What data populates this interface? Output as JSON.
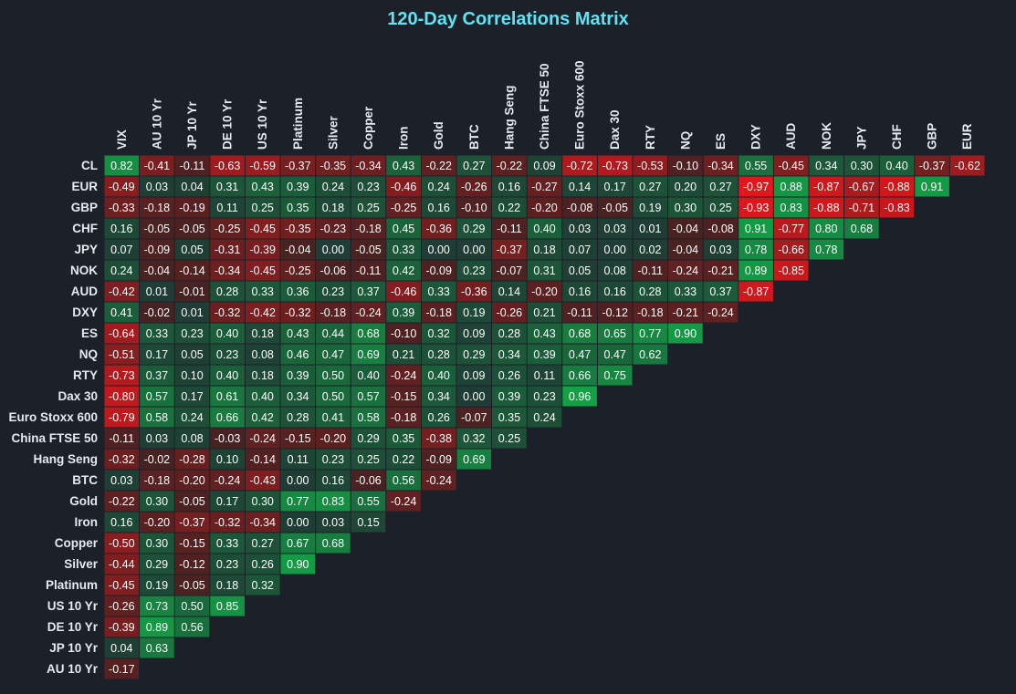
{
  "chart_data": {
    "type": "heatmap",
    "title": "120-Day Correlations Matrix",
    "columns": [
      "VIX",
      "AU 10 Yr",
      "JP 10 Yr",
      "DE 10 Yr",
      "US 10 Yr",
      "Platinum",
      "Silver",
      "Copper",
      "Iron",
      "Gold",
      "BTC",
      "Hang Seng",
      "China FTSE 50",
      "Euro Stoxx 600",
      "Dax 30",
      "RTY",
      "NQ",
      "ES",
      "DXY",
      "AUD",
      "NOK",
      "JPY",
      "CHF",
      "GBP",
      "EUR"
    ],
    "rows": [
      "CL",
      "EUR",
      "GBP",
      "CHF",
      "JPY",
      "NOK",
      "AUD",
      "DXY",
      "ES",
      "NQ",
      "RTY",
      "Dax 30",
      "Euro Stoxx 600",
      "China FTSE 50",
      "Hang Seng",
      "BTC",
      "Gold",
      "Iron",
      "Copper",
      "Silver",
      "Platinum",
      "US 10 Yr",
      "DE 10 Yr",
      "JP 10 Yr",
      "AU 10 Yr"
    ],
    "values": [
      [
        "0.82",
        "-0.41",
        "-0.11",
        "-0.63",
        "-0.59",
        "-0.37",
        "-0.35",
        "-0.34",
        "0.43",
        "-0.22",
        "0.27",
        "-0.22",
        "0.09",
        "-0.72",
        "-0.73",
        "-0.53",
        "-0.10",
        "-0.34",
        "0.55",
        "-0.45",
        "0.34",
        "0.30",
        "0.40",
        "-0.37",
        "-0.62"
      ],
      [
        "-0.49",
        "0.03",
        "0.04",
        "0.31",
        "0.43",
        "0.39",
        "0.24",
        "0.23",
        "-0.46",
        "0.24",
        "-0.26",
        "0.16",
        "-0.27",
        "0.14",
        "0.17",
        "0.27",
        "0.20",
        "0.27",
        "-0.97",
        "0.88",
        "-0.87",
        "-0.67",
        "-0.88",
        "0.91"
      ],
      [
        "-0.33",
        "-0.18",
        "-0.19",
        "0.11",
        "0.25",
        "0.35",
        "0.18",
        "0.25",
        "-0.25",
        "0.16",
        "-0.10",
        "0.22",
        "-0.20",
        "-0.08",
        "-0.05",
        "0.19",
        "0.30",
        "0.25",
        "-0.93",
        "0.83",
        "-0.88",
        "-0.71",
        "-0.83"
      ],
      [
        "0.16",
        "-0.05",
        "-0.05",
        "-0.25",
        "-0.45",
        "-0.35",
        "-0.23",
        "-0.18",
        "0.45",
        "-0.36",
        "0.29",
        "-0.11",
        "0.40",
        "0.03",
        "0.03",
        "0.01",
        "-0.04",
        "-0.08",
        "0.91",
        "-0.77",
        "0.80",
        "0.68"
      ],
      [
        "0.07",
        "-0.09",
        "0.05",
        "-0.31",
        "-0.39",
        "-0.04",
        "0.00",
        "-0.05",
        "0.33",
        "0.00",
        "0.00",
        "-0.37",
        "0.18",
        "0.07",
        "0.00",
        "0.02",
        "-0.04",
        "0.03",
        "0.78",
        "-0.66",
        "0.78"
      ],
      [
        "0.24",
        "-0.04",
        "-0.14",
        "-0.34",
        "-0.45",
        "-0.25",
        "-0.06",
        "-0.11",
        "0.42",
        "-0.09",
        "0.23",
        "-0.07",
        "0.31",
        "0.05",
        "0.08",
        "-0.11",
        "-0.24",
        "-0.21",
        "0.89",
        "-0.85"
      ],
      [
        "-0.42",
        "0.01",
        "-0.01",
        "0.28",
        "0.33",
        "0.36",
        "0.23",
        "0.37",
        "-0.46",
        "0.33",
        "-0.36",
        "0.14",
        "-0.20",
        "0.16",
        "0.16",
        "0.28",
        "0.33",
        "0.37",
        "-0.87"
      ],
      [
        "0.41",
        "-0.02",
        "0.01",
        "-0.32",
        "-0.42",
        "-0.32",
        "-0.18",
        "-0.24",
        "0.39",
        "-0.18",
        "0.19",
        "-0.26",
        "0.21",
        "-0.11",
        "-0.12",
        "-0.18",
        "-0.21",
        "-0.24"
      ],
      [
        "-0.64",
        "0.33",
        "0.23",
        "0.40",
        "0.18",
        "0.43",
        "0.44",
        "0.68",
        "-0.10",
        "0.32",
        "0.09",
        "0.28",
        "0.43",
        "0.68",
        "0.65",
        "0.77",
        "0.90"
      ],
      [
        "-0.51",
        "0.17",
        "0.05",
        "0.23",
        "0.08",
        "0.46",
        "0.47",
        "0.69",
        "0.21",
        "0.28",
        "0.29",
        "0.34",
        "0.39",
        "0.47",
        "0.47",
        "0.62"
      ],
      [
        "-0.73",
        "0.37",
        "0.10",
        "0.40",
        "0.18",
        "0.39",
        "0.50",
        "0.40",
        "-0.24",
        "0.40",
        "0.09",
        "0.26",
        "0.11",
        "0.66",
        "0.75"
      ],
      [
        "-0.80",
        "0.57",
        "0.17",
        "0.61",
        "0.40",
        "0.34",
        "0.50",
        "0.57",
        "-0.15",
        "0.34",
        "0.00",
        "0.39",
        "0.23",
        "0.96"
      ],
      [
        "-0.79",
        "0.58",
        "0.24",
        "0.66",
        "0.42",
        "0.28",
        "0.41",
        "0.58",
        "-0.18",
        "0.26",
        "-0.07",
        "0.35",
        "0.24"
      ],
      [
        "-0.11",
        "0.03",
        "0.08",
        "-0.03",
        "-0.24",
        "-0.15",
        "-0.20",
        "0.29",
        "0.35",
        "-0.38",
        "0.32",
        "0.25"
      ],
      [
        "-0.32",
        "-0.02",
        "-0.28",
        "0.10",
        "-0.14",
        "0.11",
        "0.23",
        "0.25",
        "0.22",
        "-0.09",
        "0.69"
      ],
      [
        "0.03",
        "-0.18",
        "-0.20",
        "-0.24",
        "-0.43",
        "0.00",
        "0.16",
        "-0.06",
        "0.56",
        "-0.24"
      ],
      [
        "-0.22",
        "0.30",
        "-0.05",
        "0.17",
        "0.30",
        "0.77",
        "0.83",
        "0.55",
        "-0.24"
      ],
      [
        "0.16",
        "-0.20",
        "-0.37",
        "-0.32",
        "-0.34",
        "0.00",
        "0.03",
        "0.15"
      ],
      [
        "-0.50",
        "0.30",
        "-0.15",
        "0.33",
        "0.27",
        "0.67",
        "0.68"
      ],
      [
        "-0.44",
        "0.29",
        "-0.12",
        "0.23",
        "0.26",
        "0.90"
      ],
      [
        "-0.45",
        "0.19",
        "-0.05",
        "0.18",
        "0.32"
      ],
      [
        "-0.26",
        "0.73",
        "0.50",
        "0.85"
      ],
      [
        "-0.39",
        "0.89",
        "0.56"
      ],
      [
        "0.04",
        "0.63"
      ],
      [
        "-0.17"
      ]
    ],
    "colors": {
      "background": "#1c2029",
      "title": "#5fe3f2",
      "positive": "#13a647",
      "negative": "#e8161b",
      "neutral": "#1f3d34",
      "label": "#e6e9ee"
    },
    "grid": false,
    "legend": "none"
  }
}
